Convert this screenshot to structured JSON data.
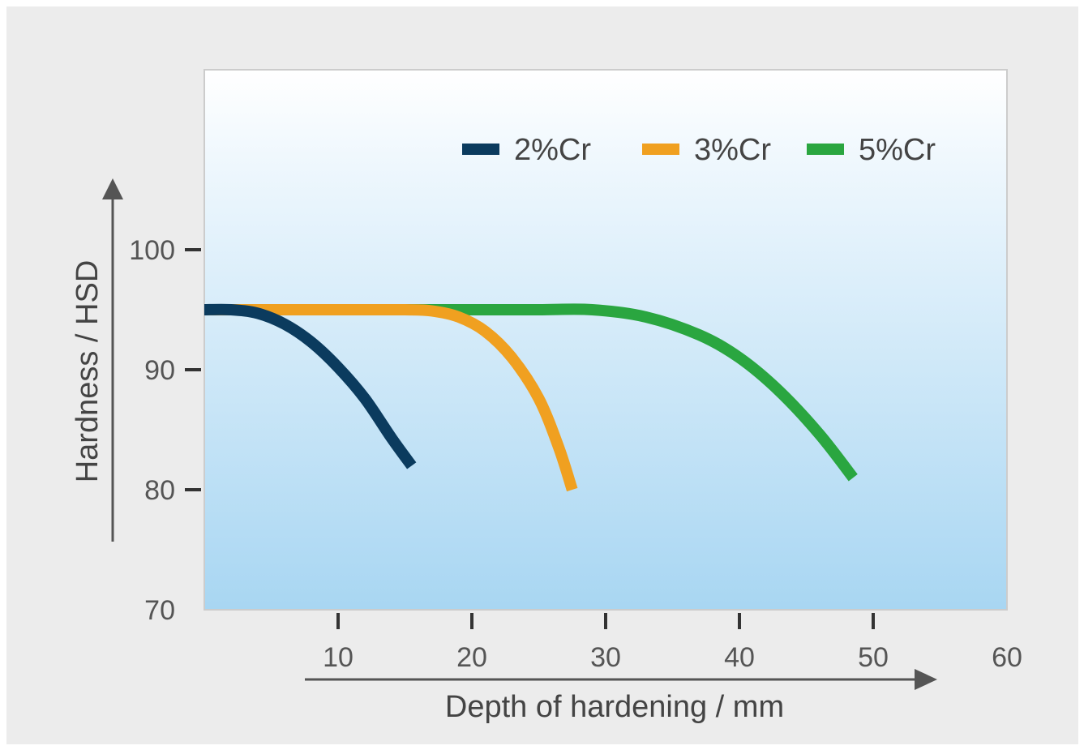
{
  "chart_data": {
    "type": "line",
    "xlabel": "Depth of hardening / mm",
    "ylabel": "Hardness / HSD",
    "xlim": [
      0,
      60
    ],
    "ylim": [
      70,
      115
    ],
    "x_ticks": [
      10,
      20,
      30,
      40,
      50,
      60
    ],
    "y_ticks": [
      100,
      90,
      80,
      70
    ],
    "grid": false,
    "legend_position": "top-right",
    "series": [
      {
        "name": "2%Cr",
        "color": "#0b3b5e",
        "x": [
          0,
          2,
          4,
          6,
          8,
          10,
          12,
          14,
          15.5
        ],
        "y": [
          95,
          95,
          94.7,
          93.8,
          92.3,
          90.2,
          87.6,
          84.3,
          82
        ]
      },
      {
        "name": "3%Cr",
        "color": "#f0a020",
        "x": [
          0,
          5,
          10,
          15,
          17,
          19,
          21,
          23,
          25,
          26.5,
          27.5
        ],
        "y": [
          95,
          95,
          95,
          95,
          94.9,
          94.4,
          93.2,
          91,
          87.6,
          83.5,
          80
        ]
      },
      {
        "name": "5%Cr",
        "color": "#2aa640",
        "x": [
          15,
          20,
          25,
          29,
          33,
          37,
          40,
          43,
          46,
          48.5
        ],
        "y": [
          95,
          95,
          95,
          95,
          94.4,
          92.9,
          91,
          88.2,
          84.6,
          81
        ]
      }
    ]
  }
}
